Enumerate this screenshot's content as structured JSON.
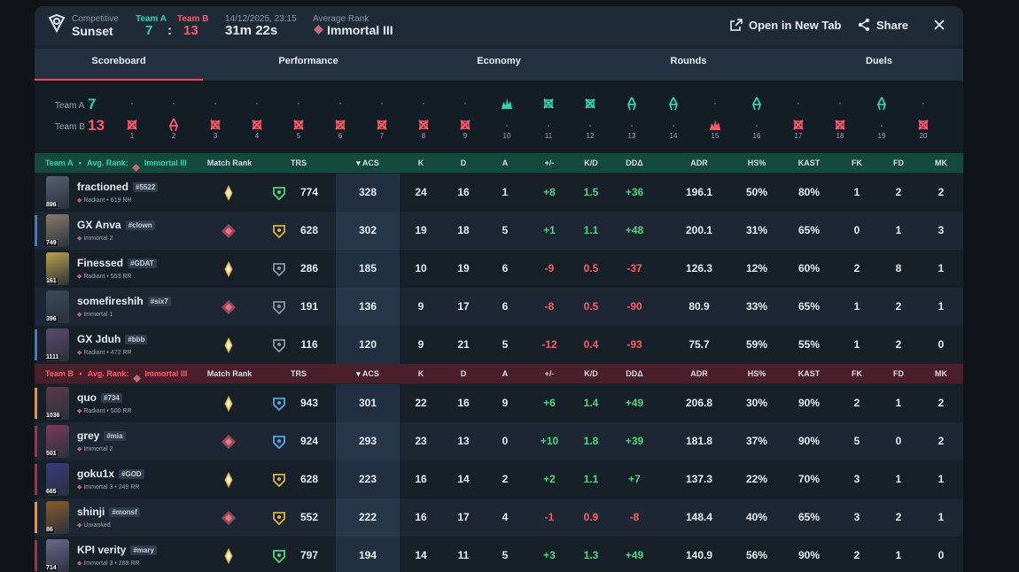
{
  "header": {
    "mode": "Competitive",
    "map": "Sunset",
    "team_a_label": "Team A",
    "team_b_label": "Team B",
    "score_a": "7",
    "colon": ":",
    "score_b": "13",
    "date": "14/12/2025, 23:15",
    "duration": "31m 22s",
    "avg_rank_label": "Average Rank",
    "avg_rank": "Immortal III",
    "open_tab": "Open in New Tab",
    "share": "Share",
    "icons": [
      "logo-icon",
      "external-link-icon",
      "share-icon",
      "close-icon"
    ]
  },
  "tabs": [
    "Scoreboard",
    "Performance",
    "Economy",
    "Rounds",
    "Duels"
  ],
  "active_tab": "Scoreboard",
  "timeline": {
    "team_a_label": "Team A",
    "team_a_score": "7",
    "team_b_label": "Team B",
    "team_b_score": "13",
    "rounds": [
      {
        "n": "1",
        "winner": "B",
        "icon": "elimination"
      },
      {
        "n": "2",
        "winner": "B",
        "icon": "defuse"
      },
      {
        "n": "3",
        "winner": "B",
        "icon": "elimination"
      },
      {
        "n": "4",
        "winner": "B",
        "icon": "elimination"
      },
      {
        "n": "5",
        "winner": "B",
        "icon": "elimination"
      },
      {
        "n": "6",
        "winner": "B",
        "icon": "elimination"
      },
      {
        "n": "7",
        "winner": "B",
        "icon": "elimination"
      },
      {
        "n": "8",
        "winner": "B",
        "icon": "elimination"
      },
      {
        "n": "9",
        "winner": "B",
        "icon": "elimination"
      },
      {
        "n": "10",
        "winner": "A",
        "icon": "detonate"
      },
      {
        "n": "11",
        "winner": "A",
        "icon": "elimination"
      },
      {
        "n": "12",
        "winner": "A",
        "icon": "elimination"
      },
      {
        "n": "13",
        "winner": "A",
        "icon": "defuse"
      },
      {
        "n": "14",
        "winner": "A",
        "icon": "defuse"
      },
      {
        "n": "15",
        "winner": "B",
        "icon": "detonate"
      },
      {
        "n": "16",
        "winner": "A",
        "icon": "defuse"
      },
      {
        "n": "17",
        "winner": "B",
        "icon": "elimination"
      },
      {
        "n": "18",
        "winner": "B",
        "icon": "elimination"
      },
      {
        "n": "19",
        "winner": "A",
        "icon": "defuse"
      },
      {
        "n": "20",
        "winner": "B",
        "icon": "elimination"
      }
    ]
  },
  "columns": [
    "Match Rank",
    "TRS",
    "ACS",
    "K",
    "D",
    "A",
    "+/-",
    "K/D",
    "DDΔ",
    "ADR",
    "HS%",
    "KAST",
    "FK",
    "FD",
    "MK"
  ],
  "team_a": {
    "title": "Team A",
    "sep": "•",
    "avg_label": "Avg. Rank:",
    "avg_rank": "Immortal III",
    "players": [
      {
        "name": "fractioned",
        "tag": "#5522",
        "rank": "Radiant • 619 RR",
        "level": "896",
        "trs": "774",
        "acs": "328",
        "k": "24",
        "d": "16",
        "a": "1",
        "pm": "+8",
        "kd": "1.5",
        "dd": "+36",
        "adr": "196.1",
        "hs": "50%",
        "kast": "80%",
        "fk": "1",
        "fd": "2",
        "mk": "2"
      },
      {
        "name": "GX Anva",
        "tag": "#clown",
        "rank": "Immortal 2",
        "level": "749",
        "trs": "628",
        "acs": "302",
        "k": "19",
        "d": "18",
        "a": "5",
        "pm": "+1",
        "kd": "1.1",
        "dd": "+48",
        "adr": "200.1",
        "hs": "31%",
        "kast": "65%",
        "fk": "0",
        "fd": "1",
        "mk": "3"
      },
      {
        "name": "Finessed",
        "tag": "#GDAT",
        "rank": "Radiant • 553 RR",
        "level": "161",
        "trs": "286",
        "acs": "185",
        "k": "10",
        "d": "19",
        "a": "6",
        "pm": "-9",
        "kd": "0.5",
        "dd": "-37",
        "adr": "126.3",
        "hs": "12%",
        "kast": "60%",
        "fk": "2",
        "fd": "8",
        "mk": "1"
      },
      {
        "name": "somefireshih",
        "tag": "#six7",
        "rank": "Immortal 1",
        "level": "396",
        "trs": "191",
        "acs": "136",
        "k": "9",
        "d": "17",
        "a": "6",
        "pm": "-8",
        "kd": "0.5",
        "dd": "-90",
        "adr": "80.9",
        "hs": "33%",
        "kast": "65%",
        "fk": "1",
        "fd": "2",
        "mk": "1"
      },
      {
        "name": "GX Jduh",
        "tag": "#bbb",
        "rank": "Radiant • 472 RR",
        "level": "1111",
        "trs": "116",
        "acs": "120",
        "k": "9",
        "d": "21",
        "a": "5",
        "pm": "-12",
        "kd": "0.4",
        "dd": "-93",
        "adr": "75.7",
        "hs": "59%",
        "kast": "55%",
        "fk": "1",
        "fd": "2",
        "mk": "0"
      }
    ]
  },
  "team_b": {
    "title": "Team B",
    "sep": "•",
    "avg_label": "Avg. Rank:",
    "avg_rank": "Immortal III",
    "players": [
      {
        "name": "quo",
        "tag": "#734",
        "rank": "Radiant • 500 RR",
        "level": "1036",
        "trs": "943",
        "acs": "301",
        "k": "22",
        "d": "16",
        "a": "9",
        "pm": "+6",
        "kd": "1.4",
        "dd": "+49",
        "adr": "206.8",
        "hs": "30%",
        "kast": "90%",
        "fk": "2",
        "fd": "1",
        "mk": "2"
      },
      {
        "name": "grey",
        "tag": "#mia",
        "rank": "Immortal 2",
        "level": "501",
        "trs": "924",
        "acs": "293",
        "k": "23",
        "d": "13",
        "a": "0",
        "pm": "+10",
        "kd": "1.8",
        "dd": "+39",
        "adr": "181.8",
        "hs": "37%",
        "kast": "90%",
        "fk": "5",
        "fd": "0",
        "mk": "2"
      },
      {
        "name": "goku1x",
        "tag": "#GOD",
        "rank": "Immortal 3 • 249 RR",
        "level": "665",
        "trs": "628",
        "acs": "223",
        "k": "16",
        "d": "14",
        "a": "2",
        "pm": "+2",
        "kd": "1.1",
        "dd": "+7",
        "adr": "137.3",
        "hs": "22%",
        "kast": "70%",
        "fk": "3",
        "fd": "1",
        "mk": "1"
      },
      {
        "name": "shinji",
        "tag": "#monsf",
        "rank": "Unranked",
        "level": "86",
        "trs": "552",
        "acs": "222",
        "k": "16",
        "d": "17",
        "a": "4",
        "pm": "-1",
        "kd": "0.9",
        "dd": "-8",
        "adr": "148.4",
        "hs": "40%",
        "kast": "65%",
        "fk": "3",
        "fd": "2",
        "mk": "1"
      },
      {
        "name": "KPI verity",
        "tag": "#mary",
        "rank": "Immortal 3 • 289 RR",
        "level": "714",
        "trs": "797",
        "acs": "194",
        "k": "14",
        "d": "11",
        "a": "5",
        "pm": "+3",
        "kd": "1.3",
        "dd": "+49",
        "adr": "140.9",
        "hs": "56%",
        "kast": "90%",
        "fk": "2",
        "fd": "1",
        "mk": "0"
      }
    ]
  },
  "colors": {
    "team_a": "#2fd3b4",
    "team_b": "#ff5a6a",
    "positive": "#4fd67e",
    "negative": "#ff5a6a",
    "active_tab_underline": "#ff4655"
  }
}
